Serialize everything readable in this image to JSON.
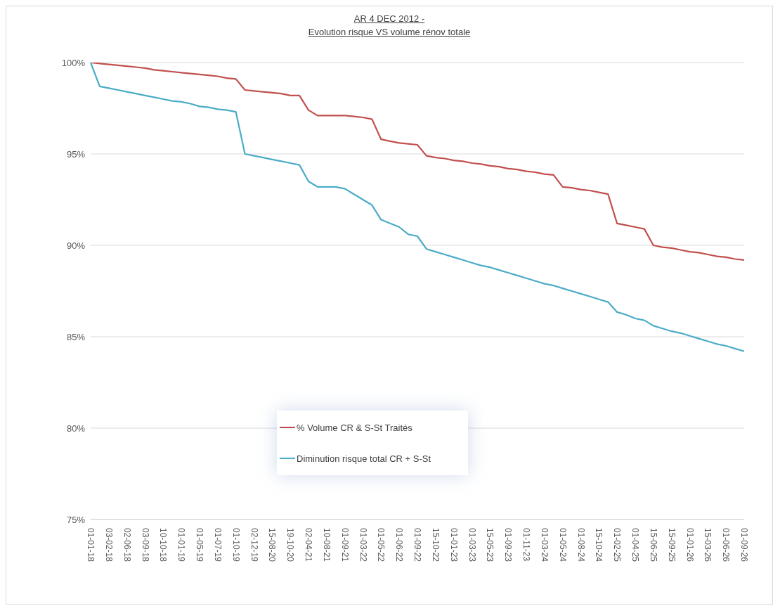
{
  "chart_data": {
    "type": "line",
    "title": "AR 4 DEC 2012 -",
    "subtitle": "Evolution risque VS volume rénov totale",
    "categories": [
      "01-01-18",
      null,
      "03-02-18",
      null,
      "02-06-18",
      null,
      "03-09-18",
      null,
      "10-10-18",
      null,
      "01-01-19",
      null,
      "01-05-19",
      null,
      "01-07-19",
      null,
      "01-10-19",
      null,
      "02-12-19",
      null,
      "15-08-20",
      null,
      "19-10-20",
      null,
      "02-04-21",
      null,
      "10-08-21",
      null,
      "01-09-21",
      null,
      "01-03-22",
      null,
      "01-05-22",
      null,
      "01-06-22",
      null,
      "01-09-22",
      null,
      "15-10-22",
      null,
      "01-01-23",
      null,
      "01-03-23",
      null,
      "15-05-23",
      null,
      "01-09-23",
      null,
      "01-11-23",
      null,
      "01-03-24",
      null,
      "01-05-24",
      null,
      "01-08-24",
      null,
      "15-10-24",
      null,
      "01-02-25",
      null,
      "01-04-25",
      null,
      "15-06-25",
      null,
      "15-09-25",
      null,
      "01-01-26",
      null,
      "15-03-26",
      null,
      "01-06-26",
      null,
      "01-09-26"
    ],
    "series": [
      {
        "name": "% Volume CR & S-St Traités",
        "color": "#c0504d",
        "values": [
          100,
          99.95,
          99.9,
          99.85,
          99.8,
          99.75,
          99.7,
          99.6,
          99.55,
          99.5,
          99.45,
          99.4,
          99.35,
          99.3,
          99.25,
          99.15,
          99.1,
          98.5,
          98.45,
          98.4,
          98.35,
          98.3,
          98.2,
          98.2,
          97.4,
          97.1,
          97.1,
          97.1,
          97.1,
          97.05,
          97.0,
          96.9,
          95.8,
          95.7,
          95.6,
          95.55,
          95.5,
          94.9,
          94.8,
          94.75,
          94.65,
          94.6,
          94.5,
          94.45,
          94.35,
          94.3,
          94.2,
          94.15,
          94.05,
          94.0,
          93.9,
          93.85,
          93.2,
          93.15,
          93.05,
          93.0,
          92.9,
          92.8,
          91.2,
          91.1,
          91.0,
          90.9,
          90.0,
          89.9,
          89.85,
          89.75,
          89.65,
          89.6,
          89.5,
          89.4,
          89.35,
          89.25,
          89.2
        ]
      },
      {
        "name": "Diminution risque total CR + S-St",
        "color": "#4bacc6",
        "values": [
          100,
          98.7,
          98.6,
          98.5,
          98.4,
          98.3,
          98.2,
          98.1,
          98.0,
          97.9,
          97.85,
          97.75,
          97.6,
          97.55,
          97.45,
          97.4,
          97.3,
          95.0,
          94.9,
          94.8,
          94.7,
          94.6,
          94.5,
          94.4,
          93.5,
          93.2,
          93.2,
          93.2,
          93.1,
          92.8,
          92.5,
          92.2,
          91.4,
          91.2,
          91.0,
          90.6,
          90.5,
          89.8,
          89.65,
          89.5,
          89.35,
          89.2,
          89.05,
          88.9,
          88.8,
          88.65,
          88.5,
          88.35,
          88.2,
          88.05,
          87.9,
          87.8,
          87.65,
          87.5,
          87.35,
          87.2,
          87.05,
          86.9,
          86.35,
          86.2,
          86.0,
          85.9,
          85.6,
          85.45,
          85.3,
          85.2,
          85.05,
          84.9,
          84.75,
          84.6,
          84.5,
          84.35,
          84.2
        ]
      }
    ],
    "ylim": [
      75,
      100
    ],
    "yticks": [
      {
        "value": 75,
        "label": "75%"
      },
      {
        "value": 80,
        "label": "80%"
      },
      {
        "value": 85,
        "label": "85%"
      },
      {
        "value": 90,
        "label": "90%"
      },
      {
        "value": 95,
        "label": "95%"
      },
      {
        "value": 100,
        "label": "100%"
      }
    ],
    "grid": "y",
    "legend": "bottom",
    "marker": "none",
    "line_style": "solid"
  }
}
